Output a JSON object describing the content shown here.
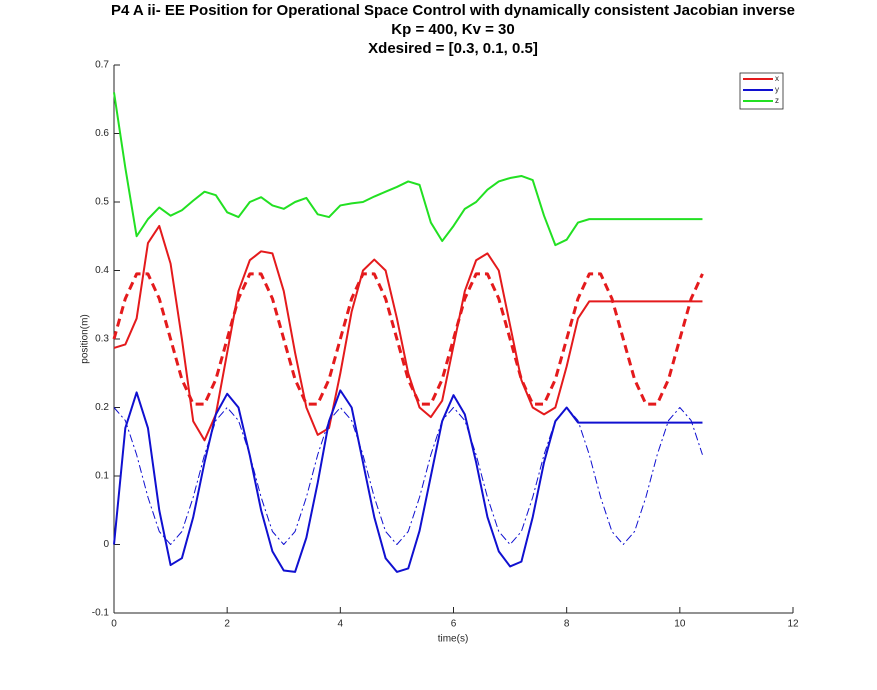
{
  "chart_data": {
    "type": "line",
    "title": [
      "P4 A ii- EE Position for Operational Space Control with dynamically consistent Jacobian inverse",
      "Kp = 400, Kv = 30",
      "Xdesired = [0.3, 0.1, 0.5]"
    ],
    "xlabel": "time(s)",
    "ylabel": "position(m)",
    "xlim": [
      0,
      12
    ],
    "xticks": [
      0,
      2,
      4,
      6,
      8,
      10,
      12
    ],
    "ylim": [
      -0.1,
      0.7
    ],
    "yticks": [
      -0.1,
      0,
      0.1,
      0.2,
      0.3,
      0.4,
      0.5,
      0.6,
      0.7
    ],
    "legend": "northeast",
    "x": [
      0,
      0.2,
      0.4,
      0.6,
      0.8,
      1,
      1.2,
      1.4,
      1.6,
      1.8,
      2,
      2.2,
      2.4,
      2.6,
      2.8,
      3,
      3.2,
      3.4,
      3.6,
      3.8,
      4,
      4.2,
      4.4,
      4.6,
      4.8,
      5,
      5.2,
      5.4,
      5.6,
      5.8,
      6,
      6.2,
      6.4,
      6.6,
      6.8,
      7,
      7.2,
      7.4,
      7.6,
      7.8,
      8,
      8.2,
      8.4,
      8.6,
      8.8,
      9,
      9.2,
      9.4,
      9.6,
      9.8,
      10,
      10.2,
      10.4
    ],
    "series": [
      {
        "name": "x",
        "color": "#e41a1c",
        "linestyle": "solid",
        "width": 2,
        "values": [
          0.287,
          0.292,
          0.33,
          0.44,
          0.465,
          0.41,
          0.3,
          0.18,
          0.152,
          0.19,
          0.28,
          0.37,
          0.415,
          0.428,
          0.425,
          0.37,
          0.28,
          0.2,
          0.16,
          0.17,
          0.25,
          0.34,
          0.4,
          0.416,
          0.4,
          0.33,
          0.25,
          0.2,
          0.186,
          0.21,
          0.29,
          0.37,
          0.415,
          0.425,
          0.4,
          0.32,
          0.24,
          0.2,
          0.19,
          0.2,
          0.26,
          0.33,
          0.355,
          0.355,
          0.355,
          0.355,
          0.355,
          0.355,
          0.355,
          0.355,
          0.355,
          0.355,
          0.355
        ]
      },
      {
        "name": "y",
        "color": "#1010d0",
        "linestyle": "solid",
        "width": 2,
        "values": [
          0,
          0.17,
          0.222,
          0.17,
          0.05,
          -0.03,
          -0.02,
          0.04,
          0.12,
          0.19,
          0.22,
          0.2,
          0.13,
          0.05,
          -0.01,
          -0.038,
          -0.04,
          0.01,
          0.09,
          0.18,
          0.225,
          0.2,
          0.12,
          0.04,
          -0.02,
          -0.04,
          -0.035,
          0.02,
          0.1,
          0.18,
          0.218,
          0.19,
          0.12,
          0.04,
          -0.01,
          -0.032,
          -0.025,
          0.04,
          0.12,
          0.18,
          0.2,
          0.178,
          0.178,
          0.178,
          0.178,
          0.178,
          0.178,
          0.178,
          0.178,
          0.178,
          0.178,
          0.178,
          0.178
        ]
      },
      {
        "name": "z",
        "color": "#22e022",
        "linestyle": "solid",
        "width": 2,
        "values": [
          0.66,
          0.55,
          0.45,
          0.475,
          0.492,
          0.48,
          0.488,
          0.502,
          0.515,
          0.51,
          0.485,
          0.478,
          0.5,
          0.507,
          0.495,
          0.49,
          0.5,
          0.506,
          0.482,
          0.478,
          0.495,
          0.498,
          0.5,
          0.508,
          0.515,
          0.522,
          0.53,
          0.525,
          0.47,
          0.443,
          0.465,
          0.49,
          0.5,
          0.518,
          0.53,
          0.535,
          0.538,
          0.532,
          0.48,
          0.437,
          0.445,
          0.47,
          0.475,
          0.475,
          0.475,
          0.475,
          0.475,
          0.475,
          0.475,
          0.475,
          0.475,
          0.475,
          0.475
        ]
      },
      {
        "color": "#e41a1c",
        "linestyle": "dashed",
        "width": 3,
        "values": [
          0.3,
          0.359,
          0.395,
          0.395,
          0.359,
          0.3,
          0.241,
          0.205,
          0.205,
          0.241,
          0.3,
          0.359,
          0.395,
          0.395,
          0.359,
          0.3,
          0.241,
          0.205,
          0.205,
          0.241,
          0.3,
          0.359,
          0.395,
          0.395,
          0.359,
          0.3,
          0.241,
          0.205,
          0.205,
          0.241,
          0.3,
          0.359,
          0.395,
          0.395,
          0.359,
          0.3,
          0.241,
          0.205,
          0.205,
          0.241,
          0.3,
          0.359,
          0.395,
          0.395,
          0.359,
          0.3,
          0.241,
          0.205,
          0.205,
          0.241,
          0.3,
          0.359,
          0.395
        ]
      },
      {
        "color": "#1010d0",
        "linestyle": "dashdot",
        "width": 1,
        "values": [
          0.2,
          0.181,
          0.131,
          0.069,
          0.019,
          0,
          0.019,
          0.069,
          0.131,
          0.181,
          0.2,
          0.181,
          0.131,
          0.069,
          0.019,
          0,
          0.019,
          0.069,
          0.131,
          0.181,
          0.2,
          0.181,
          0.131,
          0.069,
          0.019,
          0,
          0.019,
          0.069,
          0.131,
          0.181,
          0.2,
          0.181,
          0.131,
          0.069,
          0.019,
          0,
          0.019,
          0.069,
          0.131,
          0.181,
          0.2,
          0.181,
          0.131,
          0.069,
          0.019,
          0,
          0.019,
          0.069,
          0.131,
          0.181,
          0.2,
          0.181,
          0.131
        ]
      }
    ]
  }
}
